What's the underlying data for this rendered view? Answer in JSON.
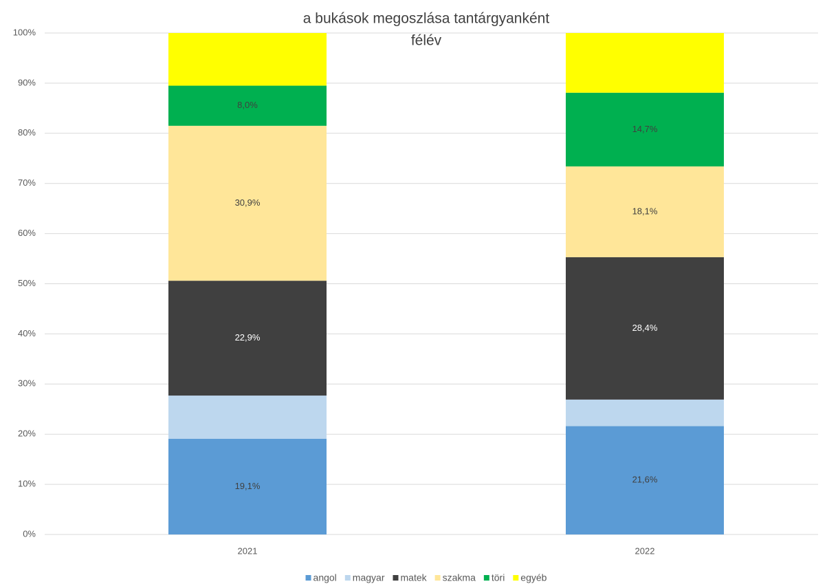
{
  "chart_data": {
    "type": "stacked_bar",
    "title": "a bukások megoszlása tantárgyanként",
    "subtitle": "félév",
    "categories": [
      "2021",
      "2022"
    ],
    "series": [
      {
        "name": "angol",
        "color": "#5b9bd5",
        "values": [
          19.1,
          21.6
        ],
        "value_labels": [
          "19,1%",
          "21,6%"
        ]
      },
      {
        "name": "magyar",
        "color": "#bdd7ee",
        "values": [
          8.6,
          5.3
        ],
        "value_labels": [
          null,
          null
        ]
      },
      {
        "name": "matek",
        "color": "#404040",
        "values": [
          22.9,
          28.4
        ],
        "value_labels": [
          "22,9%",
          "28,4%"
        ]
      },
      {
        "name": "szakma",
        "color": "#ffe699",
        "values": [
          30.9,
          18.1
        ],
        "value_labels": [
          "30,9%",
          "18,1%"
        ]
      },
      {
        "name": "töri",
        "color": "#00b050",
        "values": [
          8.0,
          14.7
        ],
        "value_labels": [
          "8,0%",
          "14,7%"
        ]
      },
      {
        "name": "egyéb",
        "color": "#ffff00",
        "values": [
          10.5,
          11.9
        ],
        "value_labels": [
          null,
          null
        ]
      }
    ],
    "ylim": [
      0,
      100
    ],
    "yticks": [
      {
        "value": 0,
        "label": "0%"
      },
      {
        "value": 10,
        "label": "10%"
      },
      {
        "value": 20,
        "label": "20%"
      },
      {
        "value": 30,
        "label": "30%"
      },
      {
        "value": 40,
        "label": "40%"
      },
      {
        "value": 50,
        "label": "50%"
      },
      {
        "value": 60,
        "label": "60%"
      },
      {
        "value": 70,
        "label": "70%"
      },
      {
        "value": 80,
        "label": "80%"
      },
      {
        "value": 90,
        "label": "90%"
      },
      {
        "value": 100,
        "label": "100%"
      }
    ],
    "grid": true,
    "legend": "bottom"
  }
}
